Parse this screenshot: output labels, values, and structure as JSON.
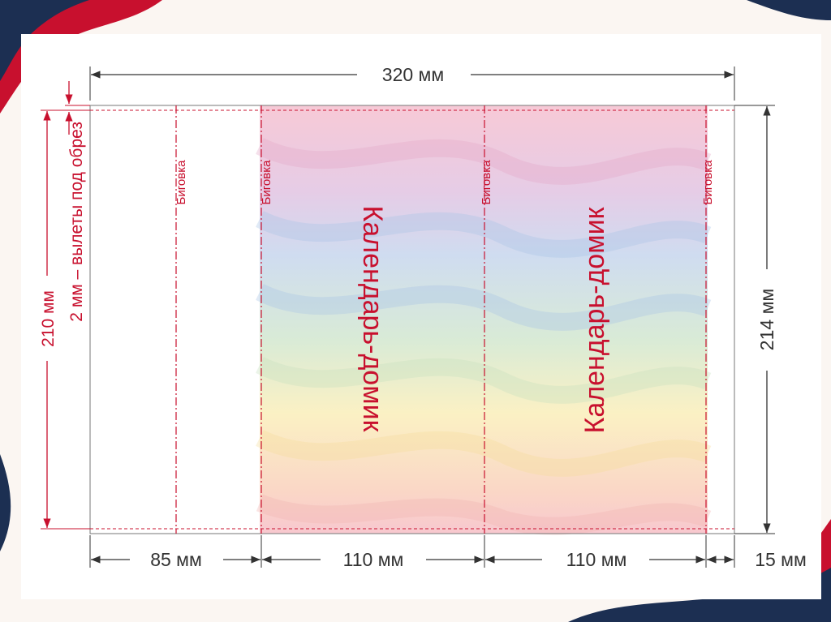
{
  "colors": {
    "accent_red": "#c8102e",
    "accent_navy": "#1c2f52",
    "dimension_line": "#333333",
    "background": "#fbf6f2"
  },
  "dimensions": {
    "total_width": "320 мм",
    "total_height": "214 мм",
    "trim_height": "210 мм",
    "bleed_note": "2 мм – вылеты под обрез",
    "segment_1": "85 мм",
    "segment_2": "110 мм",
    "segment_3": "110 мм",
    "segment_4": "15 мм"
  },
  "fold_label": "Биговка",
  "panel_title": "Календарь-домик"
}
